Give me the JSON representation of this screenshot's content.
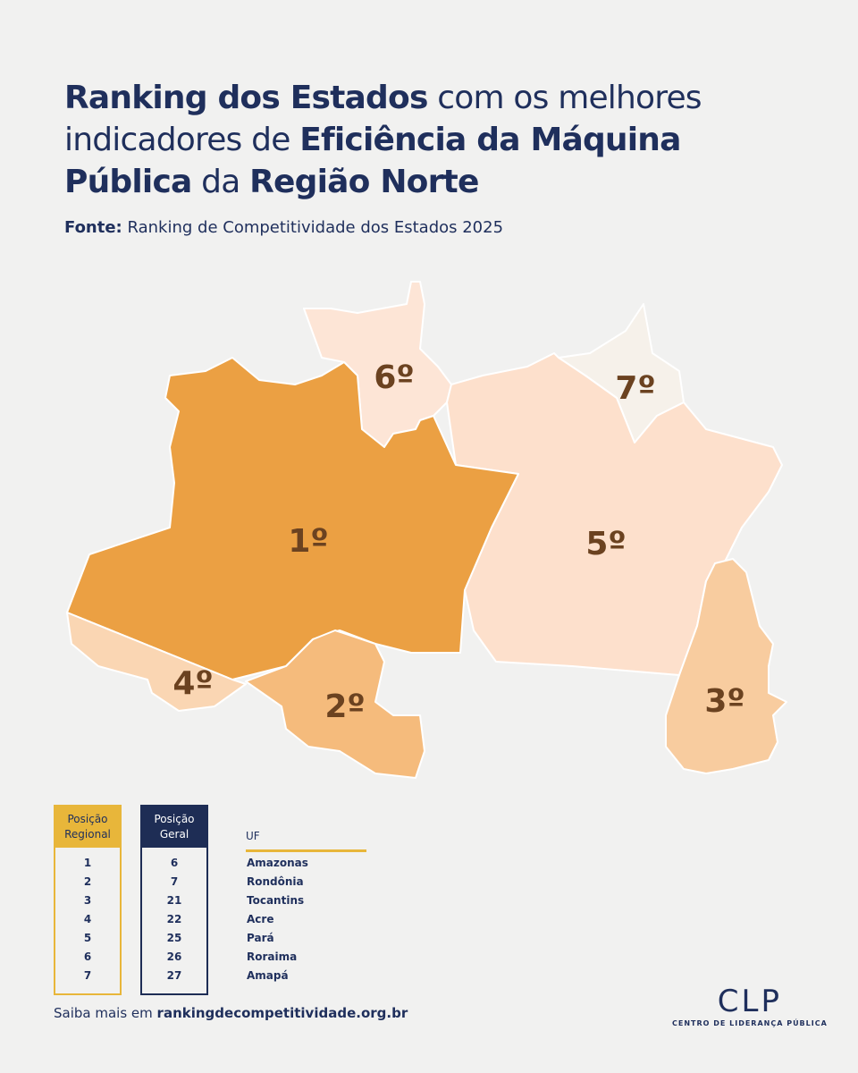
{
  "title": [
    {
      "text": "Ranking dos Estados",
      "bold": true
    },
    {
      "text": "com os melhores indicadores de",
      "bold": false
    },
    {
      "text": "Eficiência da Máquina Pública",
      "bold": true
    },
    {
      "text": "da",
      "bold": false
    },
    {
      "text": "Região Norte",
      "bold": true
    }
  ],
  "source": {
    "label": "Fonte:",
    "text": "Ranking de Competitividade dos Estados 2025"
  },
  "map_labels": [
    "1º",
    "2º",
    "3º",
    "4º",
    "5º",
    "6º",
    "7º"
  ],
  "table": {
    "headers": [
      "Posição Regional",
      "Posição Geral",
      "UF"
    ],
    "rows": [
      [
        1,
        6,
        "Amazonas"
      ],
      [
        2,
        7,
        "Rondônia"
      ],
      [
        3,
        21,
        "Tocantins"
      ],
      [
        4,
        22,
        "Acre"
      ],
      [
        5,
        25,
        "Pará"
      ],
      [
        6,
        26,
        "Roraima"
      ],
      [
        7,
        27,
        "Amapá"
      ]
    ]
  },
  "footer": {
    "text": "Saiba mais em",
    "link": "rankingdecompetitividade.org.br"
  },
  "logo": {
    "name": "CLP",
    "subtitle": "CENTRO DE LIDERANÇA PÚBLICA"
  }
}
